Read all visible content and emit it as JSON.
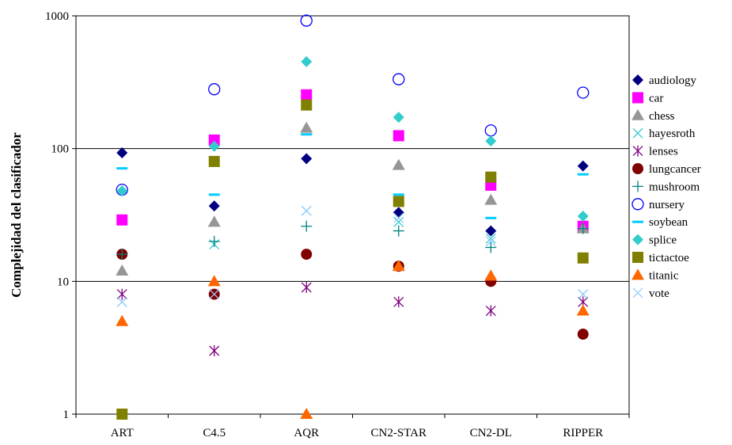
{
  "chart_data": {
    "type": "scatter",
    "title": "",
    "xlabel": "",
    "ylabel": "Complejidad del clasificador",
    "y_scale": "log",
    "ylim": [
      1,
      1000
    ],
    "y_ticks": [
      1,
      10,
      100,
      1000
    ],
    "y_tick_labels": [
      "1",
      "10",
      "100",
      "1000"
    ],
    "categories": [
      "ART",
      "C4.5",
      "AQR",
      "CN2-STAR",
      "CN2-DL",
      "RIPPER"
    ],
    "grid": "horizontal major lines",
    "legend_position": "right",
    "series": [
      {
        "name": "audiology",
        "marker": "diamond",
        "color": "#000080",
        "values": [
          93,
          37,
          84,
          33,
          24,
          74
        ]
      },
      {
        "name": "car",
        "marker": "square",
        "color": "#FF00FF",
        "values": [
          29,
          116,
          254,
          125,
          53,
          26
        ]
      },
      {
        "name": "chess",
        "marker": "triangle",
        "color": "#969696",
        "values": [
          12,
          28,
          143,
          75,
          41,
          25
        ]
      },
      {
        "name": "hayesroth",
        "marker": "x",
        "color": "#33CCCC",
        "values": [
          7,
          19,
          34,
          28,
          21,
          8
        ]
      },
      {
        "name": "lenses",
        "marker": "star",
        "color": "#800080",
        "values": [
          8,
          3,
          9,
          7,
          6,
          7
        ]
      },
      {
        "name": "lungcancer",
        "marker": "circle",
        "color": "#800000",
        "values": [
          16,
          8,
          16,
          13,
          10,
          4
        ]
      },
      {
        "name": "mushroom",
        "marker": "plus",
        "color": "#008080",
        "values": [
          16,
          20,
          26,
          24,
          18,
          25
        ]
      },
      {
        "name": "nursery",
        "marker": "ring",
        "color": "#0000FF",
        "values": [
          49,
          280,
          920,
          333,
          137,
          264
        ]
      },
      {
        "name": "soybean",
        "marker": "dash",
        "color": "#00CCFF",
        "values": [
          71,
          45,
          128,
          45,
          30,
          64
        ]
      },
      {
        "name": "splice",
        "marker": "diamond",
        "color": "#33CCCC",
        "values": [
          48,
          104,
          452,
          172,
          114,
          31
        ]
      },
      {
        "name": "tictactoe",
        "marker": "square",
        "color": "#808000",
        "values": [
          1,
          80,
          213,
          40,
          61,
          15
        ]
      },
      {
        "name": "titanic",
        "marker": "triangle",
        "color": "#FF6600",
        "values": [
          5,
          10,
          1,
          13,
          11,
          6
        ]
      },
      {
        "name": "vote",
        "marker": "x",
        "color": "#99CCFF",
        "values": [
          7,
          8,
          34,
          30,
          20,
          8
        ]
      }
    ]
  }
}
